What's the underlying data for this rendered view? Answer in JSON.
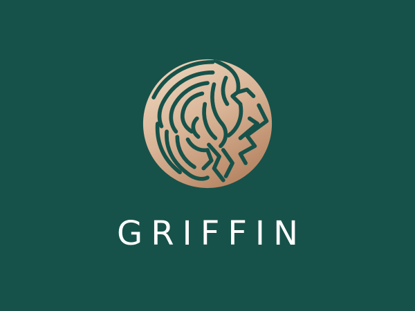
{
  "brand": {
    "name": "GRIFFIN",
    "logo_icon": "griffin-emblem-icon"
  },
  "colors": {
    "background": "#16524A",
    "emblem_light": "#F0DAC2",
    "emblem_mid": "#D9B496",
    "emblem_dark": "#B88866",
    "wordmark": "#FFFFFF"
  }
}
